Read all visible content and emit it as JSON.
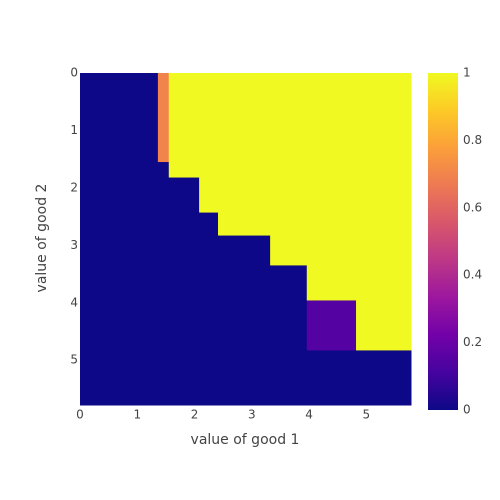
{
  "chart_data": {
    "type": "heatmap",
    "x_title": "value of good 1",
    "y_title": "value of good 2",
    "x_edges": [
      0,
      1.36,
      1.55,
      2.08,
      2.41,
      3.32,
      3.96,
      4.82,
      5.78
    ],
    "y_edges": [
      0,
      1.55,
      1.82,
      2.43,
      2.83,
      3.35,
      3.96,
      4.83,
      5.78
    ],
    "z": [
      [
        0,
        0.7,
        1,
        1,
        1,
        1,
        1,
        1
      ],
      [
        0,
        0,
        1,
        1,
        1,
        1,
        1,
        1
      ],
      [
        0,
        0,
        0,
        1,
        1,
        1,
        1,
        1
      ],
      [
        0,
        0,
        0,
        0,
        1,
        1,
        1,
        1
      ],
      [
        0,
        0,
        0,
        0,
        0,
        1,
        1,
        1
      ],
      [
        0,
        0,
        0,
        0,
        0,
        0,
        1,
        1
      ],
      [
        0,
        0,
        0,
        0,
        0,
        0,
        0.15,
        1
      ],
      [
        0,
        0,
        0,
        0,
        0,
        0,
        0,
        0
      ]
    ],
    "xlim": [
      0,
      5.78
    ],
    "xticks": [
      0,
      1,
      2,
      3,
      4,
      5
    ],
    "ylim": [
      0,
      5.78
    ],
    "yticks": [
      0,
      1,
      2,
      3,
      4,
      5
    ],
    "y_reversed": true,
    "colorscale": [
      "#0d0887",
      "#46039f",
      "#7201a8",
      "#9c179e",
      "#bd3786",
      "#d8576b",
      "#ed7953",
      "#fb9f3a",
      "#fdca26",
      "#f0f921"
    ],
    "zlim": [
      0,
      1
    ],
    "colorbar_ticks": [
      0,
      0.2,
      0.4,
      0.6,
      0.8,
      1
    ]
  }
}
